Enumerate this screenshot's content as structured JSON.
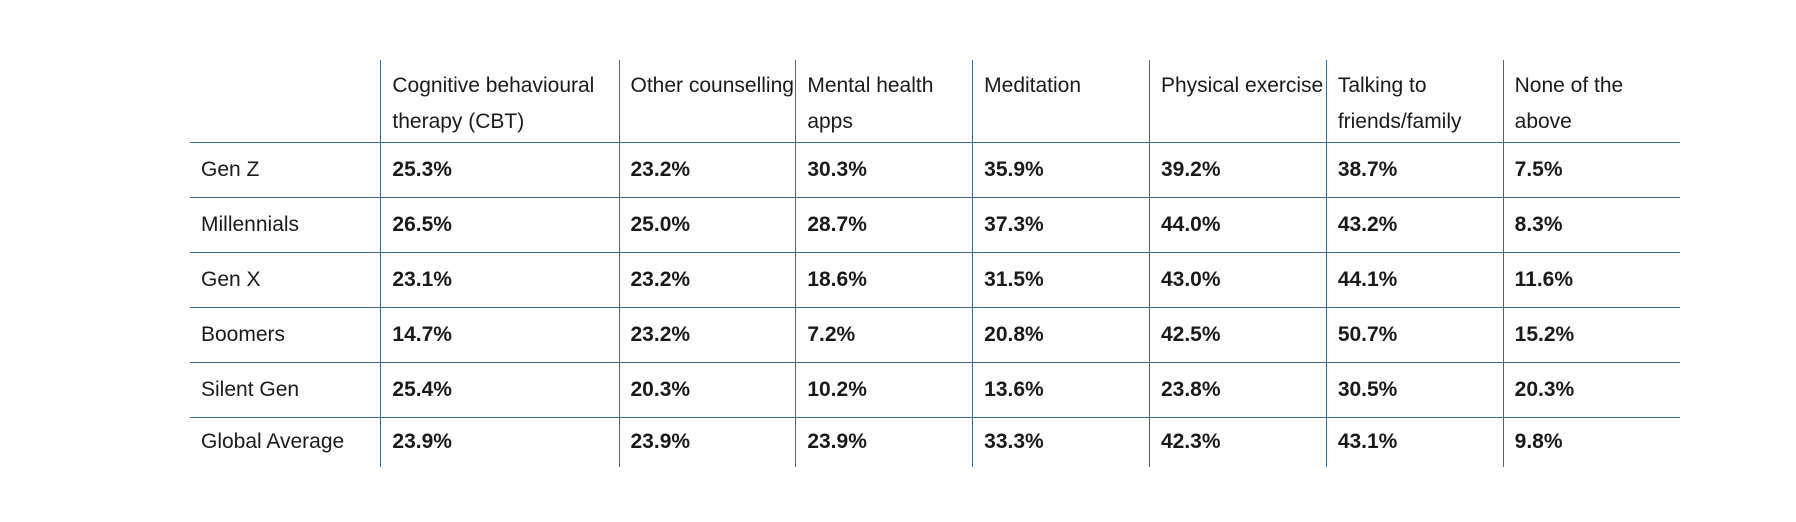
{
  "chart_data": {
    "type": "table",
    "columns": [
      "",
      "Cognitive behavioural therapy (CBT)",
      "Other counselling",
      "Mental health apps",
      "Meditation",
      "Physical exercise",
      "Talking to friends/family",
      "None of the above"
    ],
    "rows": [
      {
        "label": "Gen Z",
        "values": [
          "25.3%",
          "23.2%",
          "30.3%",
          "35.9%",
          "39.2%",
          "38.7%",
          "7.5%"
        ]
      },
      {
        "label": "Millennials",
        "values": [
          "26.5%",
          "25.0%",
          "28.7%",
          "37.3%",
          "44.0%",
          "43.2%",
          "8.3%"
        ]
      },
      {
        "label": "Gen X",
        "values": [
          "23.1%",
          "23.2%",
          "18.6%",
          "31.5%",
          "43.0%",
          "44.1%",
          "11.6%"
        ]
      },
      {
        "label": "Boomers",
        "values": [
          "14.7%",
          "23.2%",
          "7.2%",
          "20.8%",
          "42.5%",
          "50.7%",
          "15.2%"
        ]
      },
      {
        "label": "Silent Gen",
        "values": [
          "25.4%",
          "20.3%",
          "10.2%",
          "13.6%",
          "23.8%",
          "30.5%",
          "20.3%"
        ]
      },
      {
        "label": "Global Average",
        "values": [
          "23.9%",
          "23.9%",
          "23.9%",
          "33.3%",
          "42.3%",
          "43.1%",
          "9.8%"
        ]
      }
    ],
    "border_color": "#3d6a8f"
  }
}
